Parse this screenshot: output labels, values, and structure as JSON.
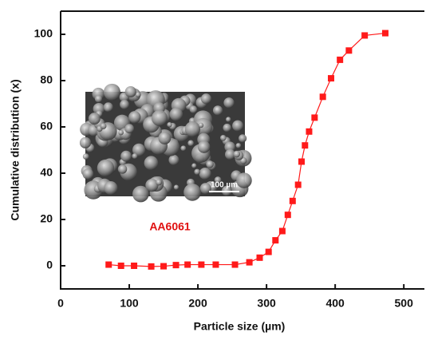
{
  "chart_data": {
    "type": "line",
    "x_label": "Particle size (µm)",
    "y_label": "Cumulative distribution (x)",
    "annotations": [
      "AA6061",
      "100 µm"
    ],
    "series": [
      {
        "name": "AA6061",
        "color": "#ff1a1a",
        "x": [
          70,
          88,
          107,
          132,
          150,
          168,
          185,
          205,
          226,
          254,
          275,
          290,
          303,
          313,
          323,
          331,
          338,
          346,
          351,
          356,
          362,
          370,
          382,
          394,
          407,
          420,
          443,
          473
        ],
        "values": [
          0.5,
          0,
          0,
          -0.3,
          -0.2,
          0.3,
          0.5,
          0.5,
          0.5,
          0.5,
          1.5,
          3.5,
          6,
          11,
          15,
          22,
          28,
          35,
          45,
          52,
          58,
          64,
          73,
          81,
          89,
          93,
          99.5,
          100.5
        ]
      }
    ],
    "xlim": [
      0,
      530
    ],
    "ylim": [
      -10,
      110
    ],
    "xticks": [
      0,
      100,
      200,
      300,
      400,
      500
    ],
    "yticks": [
      0,
      20,
      40,
      60,
      80,
      100
    ],
    "grid": false
  }
}
